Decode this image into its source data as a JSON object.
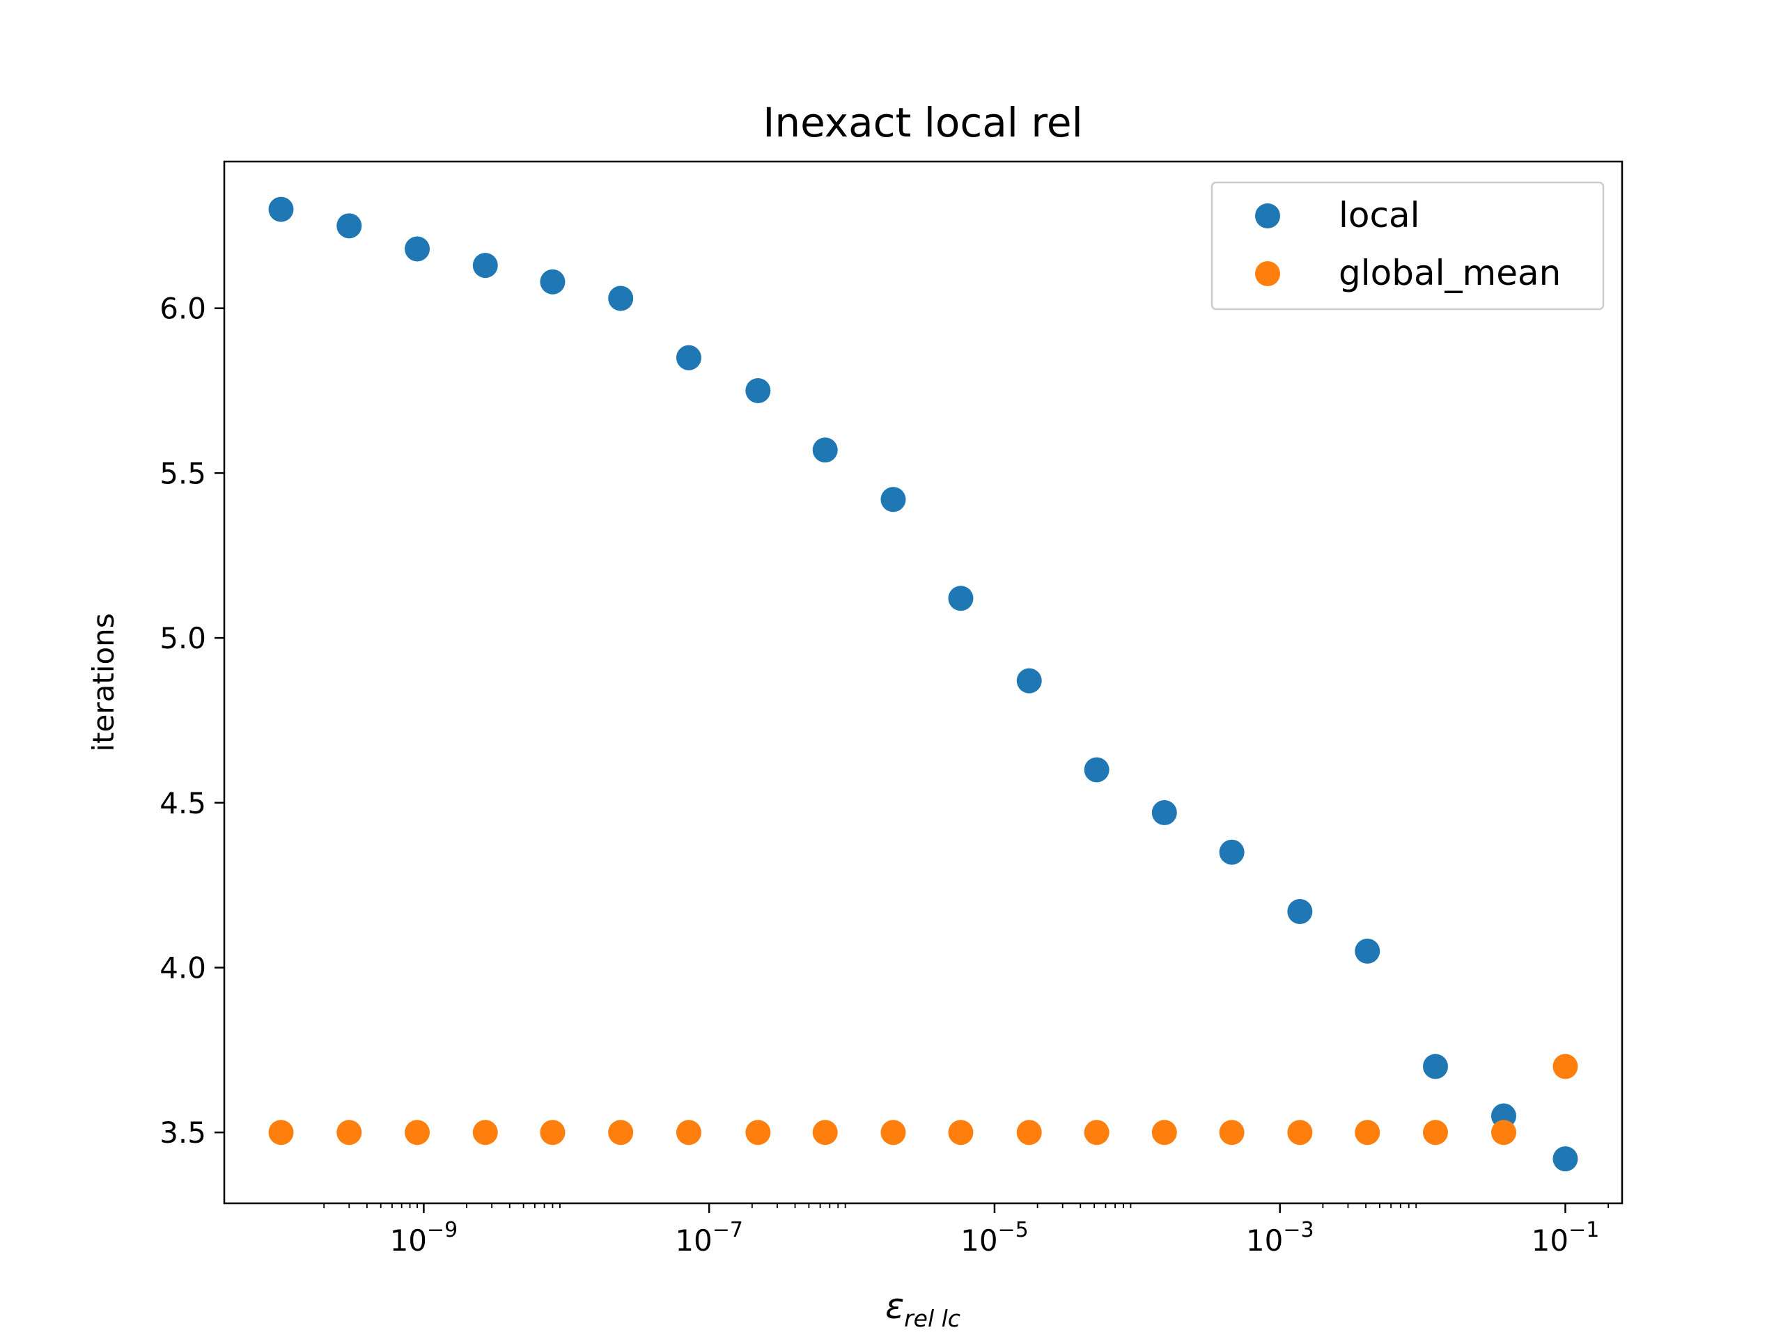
{
  "chart_data": {
    "type": "scatter",
    "title": "Inexact local rel",
    "xlabel_symbol": "ε",
    "xlabel_subscript": "rel lc",
    "ylabel": "iterations",
    "xscale": "log",
    "xlim": [
      4e-11,
      0.25
    ],
    "ylim": [
      3.285,
      6.445
    ],
    "x_ticks": [
      {
        "value": 1e-09,
        "base": "10",
        "exponent": "−9"
      },
      {
        "value": 1e-07,
        "base": "10",
        "exponent": "−7"
      },
      {
        "value": 1e-05,
        "base": "10",
        "exponent": "−5"
      },
      {
        "value": 0.001,
        "base": "10",
        "exponent": "−3"
      },
      {
        "value": 0.1,
        "base": "10",
        "exponent": "−1"
      }
    ],
    "y_ticks": [
      {
        "value": 3.5,
        "label": "3.5"
      },
      {
        "value": 4.0,
        "label": "4.0"
      },
      {
        "value": 4.5,
        "label": "4.5"
      },
      {
        "value": 5.0,
        "label": "5.0"
      },
      {
        "value": 5.5,
        "label": "5.5"
      },
      {
        "value": 6.0,
        "label": "6.0"
      }
    ],
    "x": [
      1e-10,
      3e-10,
      9e-10,
      2.7e-09,
      8e-09,
      2.4e-08,
      7.2e-08,
      2.2e-07,
      6.5e-07,
      1.95e-06,
      5.8e-06,
      1.75e-05,
      5.2e-05,
      0.000155,
      0.00046,
      0.00138,
      0.0041,
      0.0123,
      0.037,
      0.1
    ],
    "series": [
      {
        "name": "local",
        "color": "#1f77b4",
        "values": [
          6.3,
          6.25,
          6.18,
          6.13,
          6.08,
          6.03,
          5.85,
          5.75,
          5.57,
          5.42,
          5.12,
          4.87,
          4.6,
          4.47,
          4.35,
          4.17,
          4.05,
          3.7,
          3.55,
          3.42
        ]
      },
      {
        "name": "global_mean",
        "color": "#ff7f0e",
        "values": [
          3.5,
          3.5,
          3.5,
          3.5,
          3.5,
          3.5,
          3.5,
          3.5,
          3.5,
          3.5,
          3.5,
          3.5,
          3.5,
          3.5,
          3.5,
          3.5,
          3.5,
          3.5,
          3.5,
          3.7
        ]
      }
    ],
    "legend_position": "upper-right",
    "grid": false
  }
}
